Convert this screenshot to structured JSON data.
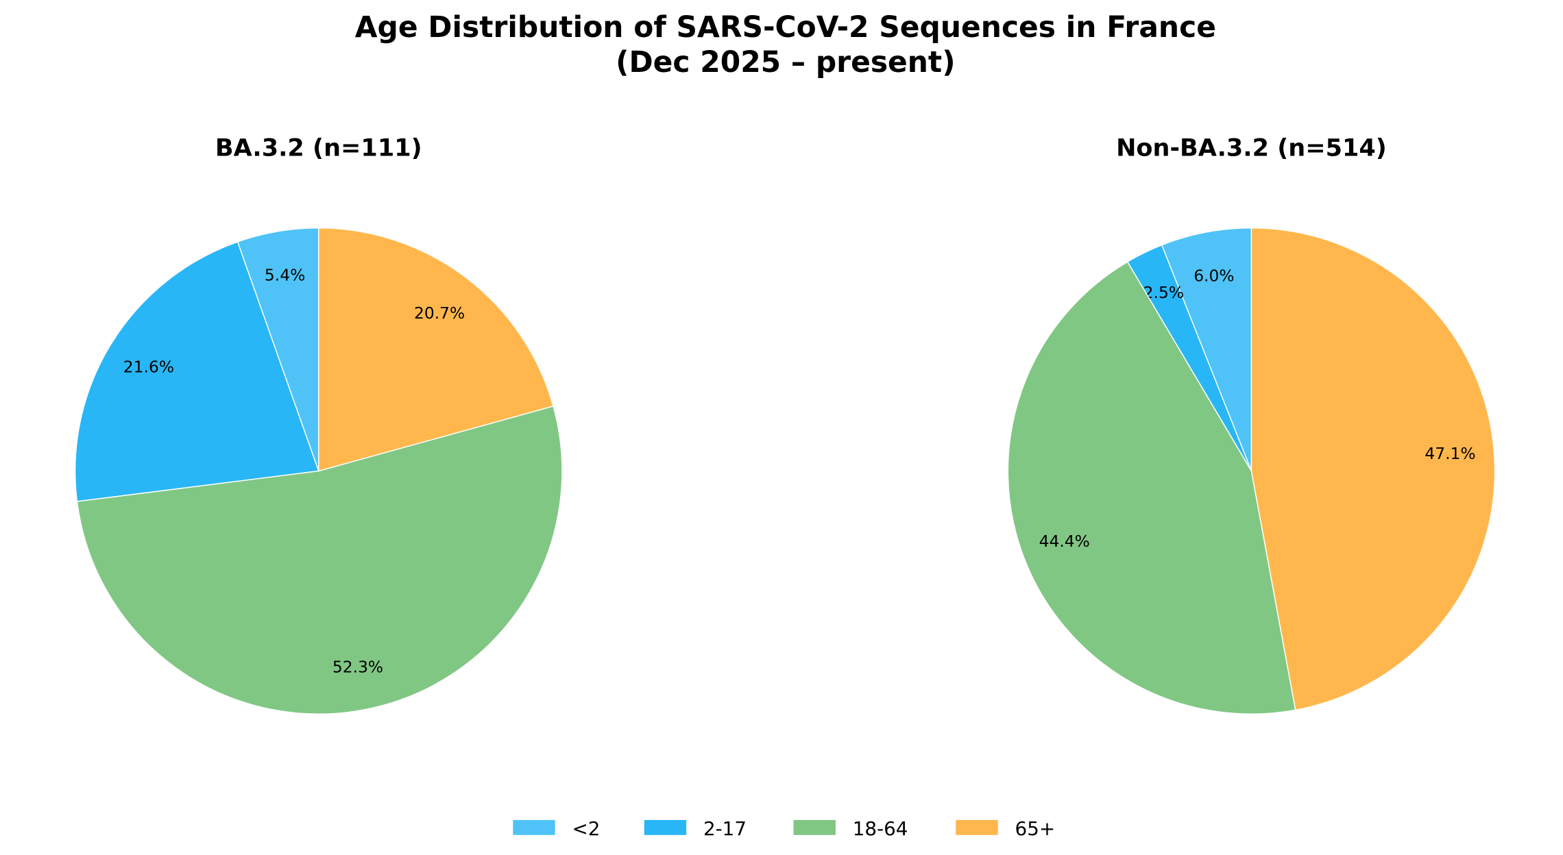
{
  "chart_data": [
    {
      "type": "pie",
      "title": "BA.3.2 (n=111)",
      "categories": [
        "<2",
        "2-17",
        "18-64",
        "65+"
      ],
      "values": [
        5.4,
        21.6,
        52.3,
        20.7
      ],
      "labels": [
        "5.4%",
        "21.6%",
        "52.3%",
        "20.7%"
      ],
      "start_angle": 90,
      "direction": "counterclockwise"
    },
    {
      "type": "pie",
      "title": "Non-BA.3.2 (n=514)",
      "categories": [
        "<2",
        "2-17",
        "18-64",
        "65+"
      ],
      "values": [
        6.0,
        2.5,
        44.4,
        47.1
      ],
      "labels": [
        "6.0%",
        "2.5%",
        "44.4%",
        "47.1%"
      ],
      "start_angle": 90,
      "direction": "counterclockwise"
    }
  ],
  "title": "Age Distribution of SARS-CoV-2 Sequences in France",
  "subtitle": "(Dec 2025 – present)",
  "legend": {
    "placement": "bottom-center",
    "entries": [
      "<2",
      "2-17",
      "18-64",
      "65+"
    ]
  },
  "colors": [
    "#4FC3F7",
    "#29B6F6",
    "#81C784",
    "#FFB74D"
  ]
}
